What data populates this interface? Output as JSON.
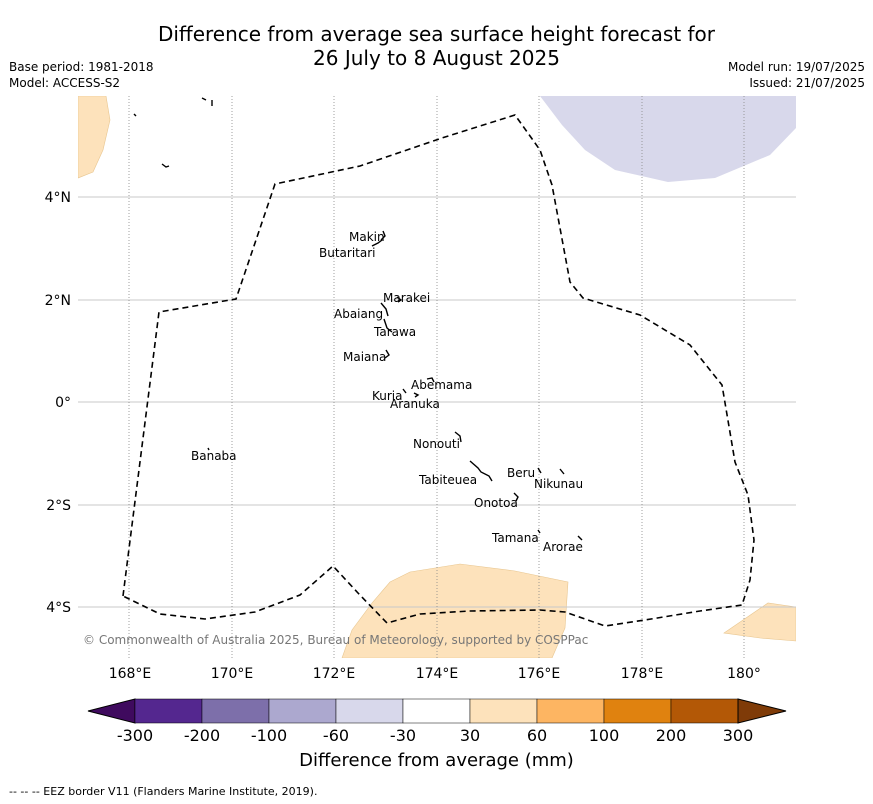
{
  "header": {
    "title_line1": "Difference from average sea surface height forecast for",
    "title_line2": "26 July to 8 August 2025",
    "base_period": "Base period: 1981-2018",
    "model": "Model: ACCESS-S2",
    "model_run": "Model run: 19/07/2025",
    "issued": "Issued: 21/07/2025"
  },
  "map": {
    "lon_ticks": [
      "168°E",
      "170°E",
      "172°E",
      "174°E",
      "176°E",
      "178°E",
      "180°"
    ],
    "lat_ticks": [
      "4°N",
      "2°N",
      "0°",
      "2°S",
      "4°S"
    ],
    "islands": [
      {
        "name": "Makin"
      },
      {
        "name": "Butaritari"
      },
      {
        "name": "Marakei"
      },
      {
        "name": "Abaiang"
      },
      {
        "name": "Tarawa"
      },
      {
        "name": "Maiana"
      },
      {
        "name": "Abemama"
      },
      {
        "name": "Kuria"
      },
      {
        "name": "Aranuka"
      },
      {
        "name": "Nonouti"
      },
      {
        "name": "Banaba"
      },
      {
        "name": "Beru"
      },
      {
        "name": "Tabiteuea"
      },
      {
        "name": "Nikunau"
      },
      {
        "name": "Onotoa"
      },
      {
        "name": "Tamana"
      },
      {
        "name": "Arorae"
      }
    ],
    "copyright": "© Commonwealth of Australia 2025, Bureau of Meteorology, supported by COSPPac"
  },
  "colorbar": {
    "title": "Difference from average (mm)",
    "tick_labels": [
      "-300",
      "-200",
      "-100",
      "-60",
      "-30",
      "30",
      "60",
      "100",
      "200",
      "300"
    ],
    "colors": [
      "#3f0a5e",
      "#54278f",
      "#7d6faa",
      "#aca8cf",
      "#d8d8eb",
      "#ffffff",
      "#fde2bb",
      "#fdb562",
      "#e0820f",
      "#b35806",
      "#7f3b08"
    ]
  },
  "footer": {
    "eez_note": "--  --  -- EEZ border V11 (Flanders Marine Institute, 2019)."
  }
}
